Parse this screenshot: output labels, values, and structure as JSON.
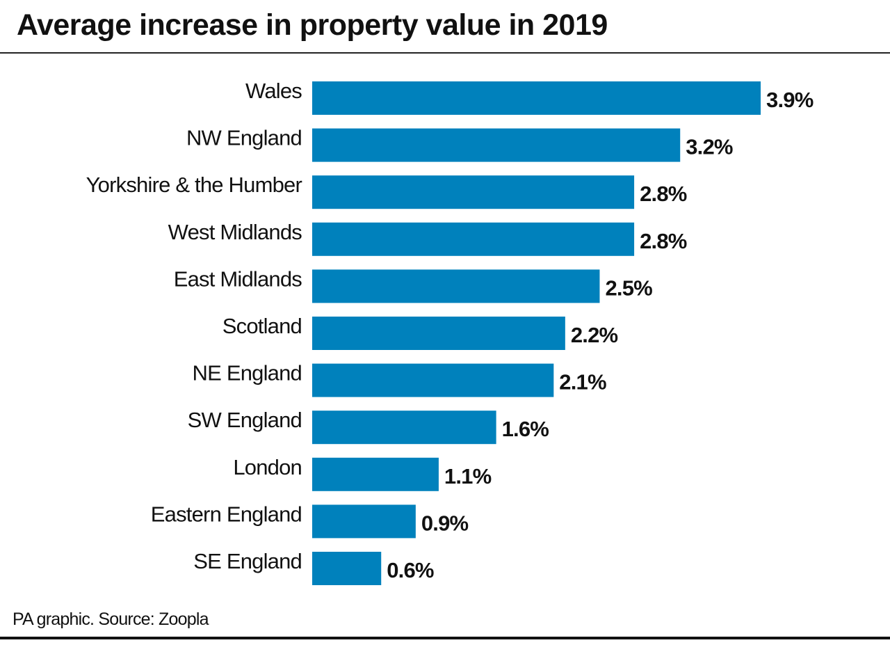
{
  "chart_data": {
    "type": "bar",
    "orientation": "horizontal",
    "title": "Average increase in property value in 2019",
    "source": "PA graphic. Source: Zoopla",
    "categories": [
      "Wales",
      "NW England",
      "Yorkshire & the Humber",
      "West Midlands",
      "East Midlands",
      "Scotland",
      "NE England",
      "SW England",
      "London",
      "Eastern England",
      "SE England"
    ],
    "values": [
      3.9,
      3.2,
      2.8,
      2.8,
      2.5,
      2.2,
      2.1,
      1.6,
      1.1,
      0.9,
      0.6
    ],
    "labels": [
      "3.9%",
      "3.2%",
      "2.8%",
      "2.8%",
      "2.5%",
      "2.2%",
      "2.1%",
      "1.6%",
      "1.1%",
      "0.9%",
      "0.6%"
    ],
    "unit": "%",
    "xlim": [
      0,
      3.9
    ],
    "grid": false,
    "bar_color": "#0081bc"
  }
}
